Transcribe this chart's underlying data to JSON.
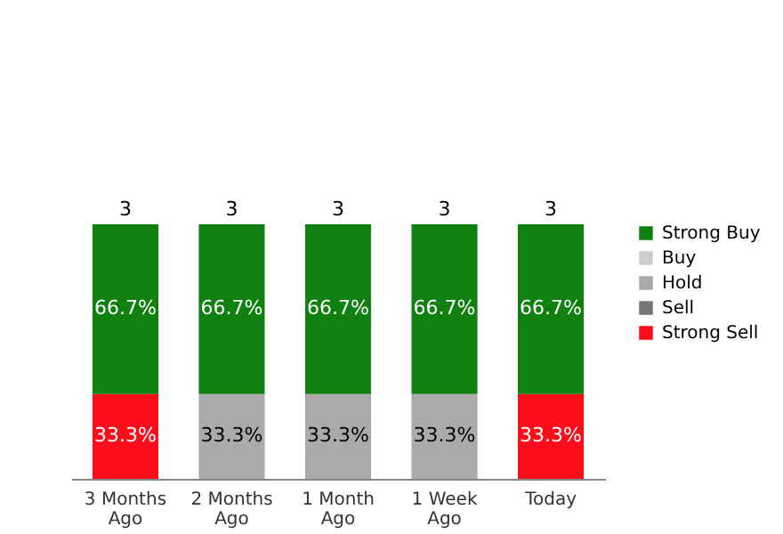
{
  "chart_data": {
    "type": "bar",
    "stacked": true,
    "legend": "right",
    "categories": [
      "3 Months Ago",
      "2 Months Ago",
      "1 Month Ago",
      "1 Week Ago",
      "Today"
    ],
    "series": [
      {
        "name": "Strong Sell",
        "color": "#fb0d1c",
        "values": [
          33.3,
          null,
          null,
          null,
          33.3
        ],
        "value_labels": [
          "33.3%",
          null,
          null,
          null,
          "33.3%"
        ]
      },
      {
        "name": "Sell",
        "color": "#767676",
        "values": [
          null,
          null,
          null,
          null,
          null
        ]
      },
      {
        "name": "Hold",
        "color": "#aaaaaa",
        "values": [
          null,
          33.3,
          33.3,
          33.3,
          null
        ],
        "value_labels": [
          null,
          "33.3%",
          "33.3%",
          "33.3%",
          null
        ]
      },
      {
        "name": "Buy",
        "color": "#cdcdcd",
        "values": [
          null,
          null,
          null,
          null,
          null
        ]
      },
      {
        "name": "Strong Buy",
        "color": "#108010",
        "values": [
          66.7,
          66.7,
          66.7,
          66.7,
          66.7
        ],
        "value_labels": [
          "66.7%",
          "66.7%",
          "66.7%",
          "66.7%",
          "66.7%"
        ]
      }
    ],
    "annotations": [
      {
        "text": "3",
        "x": "3 Months Ago",
        "y": 100
      },
      {
        "text": "3",
        "x": "2 Months Ago",
        "y": 100
      },
      {
        "text": "3",
        "x": "1 Month Ago",
        "y": 100
      },
      {
        "text": "3",
        "x": "1 Week Ago",
        "y": 100
      },
      {
        "text": "3",
        "x": "Today",
        "y": 100
      }
    ]
  }
}
